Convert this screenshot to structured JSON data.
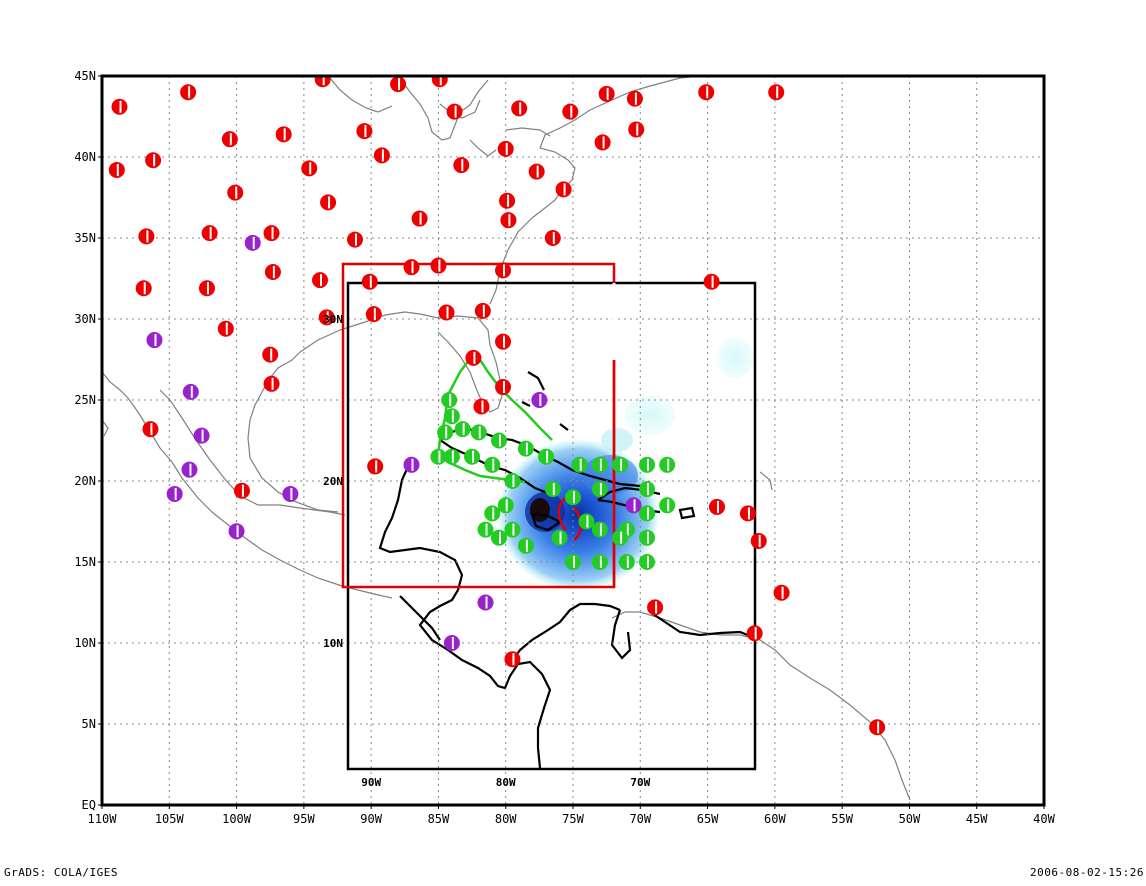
{
  "map": {
    "lon_range": [
      -110,
      -40
    ],
    "lat_range": [
      0,
      45
    ],
    "grid": true,
    "lon_labels": [
      "110W",
      "105W",
      "100W",
      "95W",
      "90W",
      "85W",
      "80W",
      "75W",
      "70W",
      "65W",
      "60W",
      "55W",
      "50W",
      "45W",
      "40W"
    ],
    "lat_labels": [
      "EQ",
      "5N",
      "10N",
      "15N",
      "20N",
      "25N",
      "30N",
      "35N",
      "40N",
      "45N"
    ],
    "inner_lon_labels": [
      "90W",
      "80W",
      "70W"
    ],
    "inner_lat_labels": [
      "10N",
      "20N",
      "30N"
    ],
    "nested_domains": [
      {
        "name": "outer-domain",
        "color": "#000000",
        "lon": [
          -91.8,
          -61.6
        ],
        "lat": [
          1.1,
          32.4
        ]
      },
      {
        "name": "inner-domain",
        "color": "#e00000",
        "lon": [
          -91.8,
          -72.2
        ],
        "lat": [
          13.3,
          33.5
        ]
      }
    ],
    "station_groups": [
      {
        "name": "red-stations",
        "color": "#ee0000",
        "points": [
          [
            -108.7,
            43.1
          ],
          [
            -103.6,
            44.0
          ],
          [
            -93.6,
            44.8
          ],
          [
            -88.0,
            44.5
          ],
          [
            -84.9,
            44.8
          ],
          [
            -83.8,
            42.8
          ],
          [
            -79.0,
            43.0
          ],
          [
            -75.2,
            42.8
          ],
          [
            -72.5,
            43.9
          ],
          [
            -70.4,
            43.6
          ],
          [
            -65.1,
            44.0
          ],
          [
            -59.9,
            44.0
          ],
          [
            -108.9,
            39.2
          ],
          [
            -106.2,
            39.8
          ],
          [
            -100.5,
            41.1
          ],
          [
            -96.5,
            41.4
          ],
          [
            -94.6,
            39.3
          ],
          [
            -90.5,
            41.6
          ],
          [
            -89.2,
            40.1
          ],
          [
            -83.3,
            39.5
          ],
          [
            -80.0,
            40.5
          ],
          [
            -77.7,
            39.1
          ],
          [
            -75.7,
            38.0
          ],
          [
            -72.8,
            40.9
          ],
          [
            -70.3,
            41.7
          ],
          [
            -100.1,
            37.8
          ],
          [
            -93.2,
            37.2
          ],
          [
            -86.4,
            36.2
          ],
          [
            -79.9,
            37.3
          ],
          [
            -79.8,
            36.1
          ],
          [
            -76.5,
            35.0
          ],
          [
            -106.7,
            35.1
          ],
          [
            -102.0,
            35.3
          ],
          [
            -97.4,
            35.3
          ],
          [
            -91.2,
            34.9
          ],
          [
            -106.9,
            31.9
          ],
          [
            -102.2,
            31.9
          ],
          [
            -97.3,
            32.9
          ],
          [
            -93.8,
            32.4
          ],
          [
            -90.1,
            32.3
          ],
          [
            -87.0,
            33.2
          ],
          [
            -85.0,
            33.3
          ],
          [
            -80.2,
            33.0
          ],
          [
            -64.7,
            32.3
          ],
          [
            -100.8,
            29.4
          ],
          [
            -97.5,
            27.8
          ],
          [
            -97.4,
            26.0
          ],
          [
            -93.3,
            30.1
          ],
          [
            -89.8,
            30.3
          ],
          [
            -84.4,
            30.4
          ],
          [
            -81.7,
            30.5
          ],
          [
            -80.2,
            28.6
          ],
          [
            -80.2,
            25.8
          ],
          [
            -81.8,
            24.6
          ],
          [
            -82.4,
            27.6
          ],
          [
            -106.4,
            23.2
          ],
          [
            -99.6,
            19.4
          ],
          [
            -89.7,
            20.9
          ],
          [
            -64.3,
            18.4
          ],
          [
            -62.0,
            18.0
          ],
          [
            -61.2,
            16.3
          ],
          [
            -59.5,
            13.1
          ],
          [
            -68.9,
            12.2
          ],
          [
            -61.5,
            10.6
          ],
          [
            -79.5,
            9.0
          ],
          [
            -52.4,
            4.8
          ]
        ]
      },
      {
        "name": "purple-stations",
        "color": "#9922cc",
        "points": [
          [
            -98.8,
            34.7
          ],
          [
            -106.1,
            28.7
          ],
          [
            -103.4,
            25.5
          ],
          [
            -102.6,
            22.8
          ],
          [
            -103.5,
            20.7
          ],
          [
            -104.6,
            19.2
          ],
          [
            -96.0,
            19.2
          ],
          [
            -100.0,
            16.9
          ],
          [
            -87.0,
            21.0
          ],
          [
            -77.5,
            25.0
          ],
          [
            -81.5,
            12.5
          ],
          [
            -84.0,
            10.0
          ],
          [
            -70.5,
            18.5
          ]
        ]
      },
      {
        "name": "green-stations",
        "color": "#22cc22",
        "points": [
          [
            -84.2,
            25.0
          ],
          [
            -84.0,
            24.0
          ],
          [
            -84.5,
            23.0
          ],
          [
            -85.0,
            21.5
          ],
          [
            -83.2,
            23.2
          ],
          [
            -82.0,
            23.0
          ],
          [
            -80.5,
            22.5
          ],
          [
            -78.5,
            22.0
          ],
          [
            -77.0,
            21.5
          ],
          [
            -84.0,
            21.5
          ],
          [
            -82.5,
            21.5
          ],
          [
            -81.0,
            21.0
          ],
          [
            -79.5,
            20.0
          ],
          [
            -80.0,
            18.5
          ],
          [
            -79.5,
            17.0
          ],
          [
            -80.5,
            16.5
          ],
          [
            -81.5,
            17.0
          ],
          [
            -81.0,
            18.0
          ],
          [
            -78.5,
            16.0
          ],
          [
            -76.0,
            16.5
          ],
          [
            -75.0,
            15.0
          ],
          [
            -73.0,
            15.0
          ],
          [
            -71.0,
            15.0
          ],
          [
            -69.5,
            15.0
          ],
          [
            -69.5,
            16.5
          ],
          [
            -69.5,
            18.0
          ],
          [
            -69.5,
            19.5
          ],
          [
            -69.5,
            21.0
          ],
          [
            -71.5,
            21.0
          ],
          [
            -73.0,
            21.0
          ],
          [
            -74.5,
            21.0
          ],
          [
            -73.0,
            19.5
          ],
          [
            -73.0,
            17.0
          ],
          [
            -71.0,
            17.0
          ],
          [
            -71.5,
            16.5
          ],
          [
            -74.0,
            17.5
          ],
          [
            -75.0,
            19.0
          ],
          [
            -76.5,
            19.5
          ],
          [
            -68.0,
            18.5
          ],
          [
            -68.0,
            21.0
          ]
        ]
      }
    ],
    "red_station_edge": "#ffffff",
    "precip_shading_colors": [
      "#cdfcfc",
      "#9ed0f5",
      "#6aaaf0",
      "#3b7fe6",
      "#1e55d2",
      "#0a2fa0"
    ]
  },
  "footer": {
    "left": "GrADS: COLA/IGES",
    "right": "2006-08-02-15:26"
  }
}
